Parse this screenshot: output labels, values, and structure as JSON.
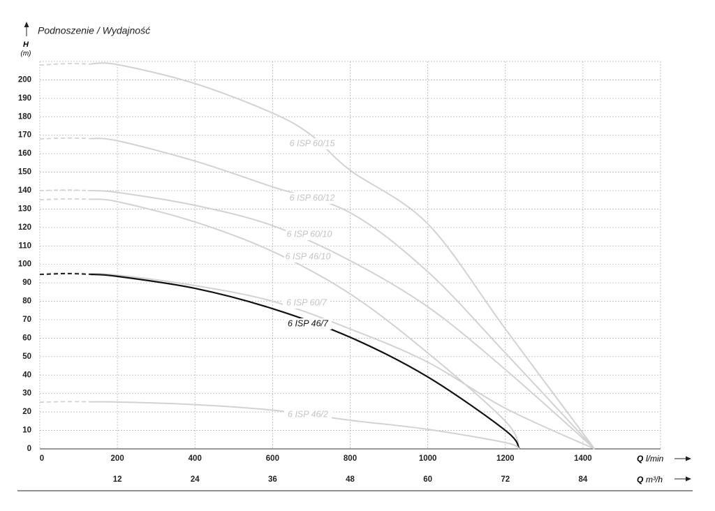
{
  "chart_data": {
    "type": "line",
    "title": "Podnoszenie / Wydajność",
    "y_label": "H",
    "y_unit": "(m)",
    "x_label": "Q",
    "x_unit": "l/min",
    "x2_label": "Q",
    "x2_unit": "m³/h",
    "xlim": [
      0,
      1600
    ],
    "xticks": [
      0,
      200,
      400,
      600,
      800,
      1000,
      1200,
      1400
    ],
    "x2lim": [
      0,
      96
    ],
    "x2ticks": [
      12,
      24,
      36,
      48,
      60,
      72,
      84
    ],
    "ylim": [
      0,
      210
    ],
    "yticks": [
      0,
      10,
      20,
      30,
      40,
      50,
      60,
      70,
      80,
      90,
      100,
      110,
      120,
      130,
      140,
      150,
      160,
      170,
      180,
      190,
      200
    ],
    "grid": true,
    "series": [
      {
        "name": "6 ISP 60/15",
        "color": "#d2d2d2",
        "dashed_x": [
          0,
          70,
          130
        ],
        "dashed_values": [
          208,
          208.8,
          208.6
        ],
        "x": [
          130,
          200,
          400,
          600,
          700,
          800,
          1000,
          1200,
          1430
        ],
        "values": [
          208.6,
          208.3,
          198,
          182,
          170,
          151,
          122,
          65,
          0
        ]
      },
      {
        "name": "6 ISP 60/12",
        "color": "#d2d2d2",
        "dashed_x": [
          0,
          70,
          130
        ],
        "dashed_values": [
          168,
          168.5,
          168.2
        ],
        "x": [
          130,
          200,
          400,
          600,
          800,
          1000,
          1200,
          1430
        ],
        "values": [
          168.2,
          167,
          156,
          142,
          128,
          96,
          52,
          0
        ]
      },
      {
        "name": "6 ISP 60/10",
        "color": "#d2d2d2",
        "dashed_x": [
          0,
          70,
          130
        ],
        "dashed_values": [
          140,
          140.3,
          140
        ],
        "x": [
          130,
          200,
          400,
          600,
          800,
          1000,
          1200,
          1430
        ],
        "values": [
          140,
          139,
          132,
          121,
          102,
          77,
          43,
          0
        ]
      },
      {
        "name": "6 ISP 46/10",
        "color": "#d2d2d2",
        "dashed_x": [
          0,
          70,
          130
        ],
        "dashed_values": [
          135,
          135.5,
          135.3
        ],
        "x": [
          130,
          200,
          400,
          600,
          800,
          1000,
          1200,
          1236
        ],
        "values": [
          135.3,
          134,
          123,
          107,
          84,
          52,
          15,
          0
        ]
      },
      {
        "name": "6 ISP 60/7",
        "color": "#d2d2d2",
        "dashed_x": [
          0,
          70,
          130
        ],
        "dashed_values": [
          95,
          95.3,
          95
        ],
        "x": [
          130,
          200,
          400,
          600,
          800,
          1000,
          1200,
          1430
        ],
        "values": [
          95,
          94.2,
          88.5,
          80,
          65,
          47,
          22,
          0
        ]
      },
      {
        "name": "6 ISP 46/7",
        "color": "#111111",
        "dashed_x": [
          0,
          70,
          130
        ],
        "dashed_values": [
          94.5,
          95,
          94.6
        ],
        "x": [
          130,
          200,
          400,
          600,
          800,
          1000,
          1200,
          1236
        ],
        "values": [
          94.6,
          93.5,
          87,
          76,
          60.5,
          39,
          10,
          0
        ]
      },
      {
        "name": "6 ISP 46/2",
        "color": "#d2d2d2",
        "dashed_x": [
          0,
          70,
          130
        ],
        "dashed_values": [
          25.3,
          25.6,
          25.5
        ],
        "x": [
          130,
          200,
          400,
          600,
          800,
          1000,
          1200,
          1236
        ],
        "values": [
          25.5,
          25.4,
          24,
          21,
          15.5,
          10.6,
          3.4,
          0
        ]
      }
    ]
  }
}
